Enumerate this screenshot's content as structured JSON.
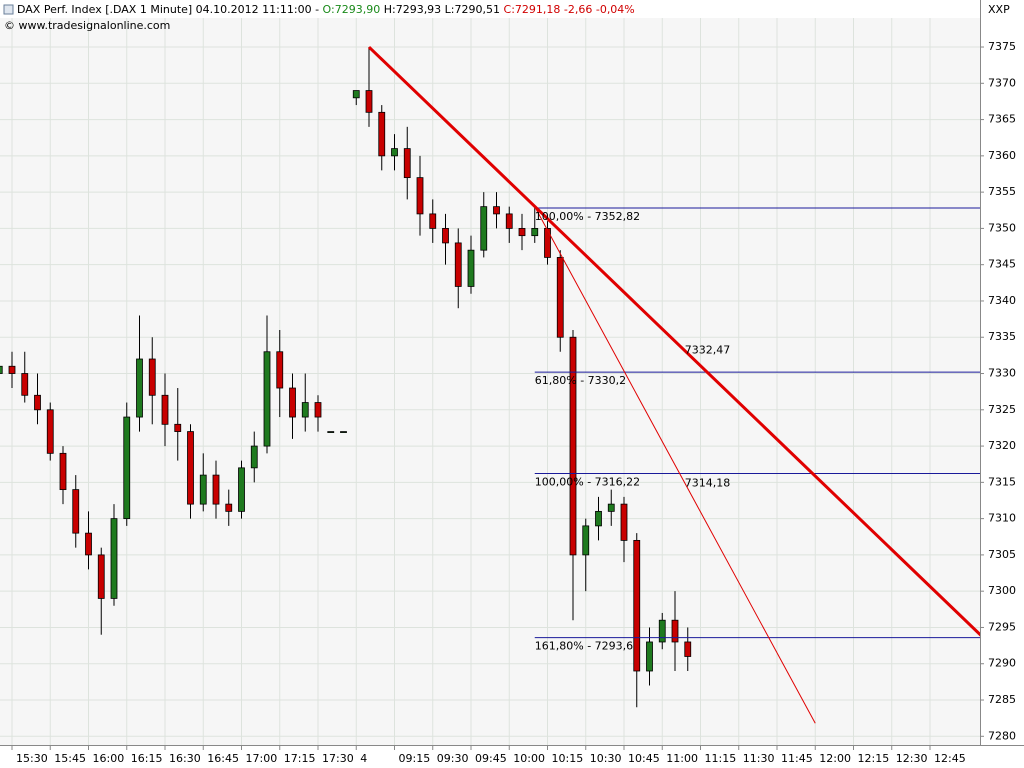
{
  "chart_data": {
    "type": "candlestick",
    "header": {
      "title": "DAX Perf. Index [.DAX  1 Minute] 04.10.2012 11:11:00 -",
      "open": "O:7293,90",
      "high_low": "H:7293,93 L:7290,51",
      "close": "C:7291,18 -2,66 -0,04%"
    },
    "copyright": "© www.tradesignalonline.com",
    "symbol_label": "XXP",
    "categories": [
      "15:25",
      "15:30",
      "15:35",
      "15:40",
      "15:45",
      "15:50",
      "15:55",
      "16:00",
      "16:05",
      "16:10",
      "16:15",
      "16:20",
      "16:25",
      "16:30",
      "16:35",
      "16:40",
      "16:45",
      "16:50",
      "16:55",
      "17:00",
      "17:05",
      "17:10",
      "17:15",
      "17:20",
      "17:25",
      "17:30",
      "17:35",
      "17:40",
      "09:00",
      "09:05",
      "09:10",
      "09:15",
      "09:20",
      "09:25",
      "09:30",
      "09:35",
      "09:40",
      "09:45",
      "09:50",
      "09:55",
      "10:00",
      "10:05",
      "10:10",
      "10:15",
      "10:20",
      "10:25",
      "10:30",
      "10:35",
      "10:40",
      "10:45",
      "10:50",
      "10:55",
      "11:00",
      "11:05",
      "11:10"
    ],
    "open": [
      7330,
      7331,
      7330,
      7327,
      7325,
      7319,
      7314,
      7308,
      7305,
      7299,
      7310,
      7324,
      7332,
      7327,
      7323,
      7322,
      7312,
      7316,
      7312,
      7311,
      7317,
      7320,
      7333,
      7328,
      7324,
      7326,
      7322,
      7322,
      7368,
      7369,
      7366,
      7360,
      7361,
      7357,
      7352,
      7350,
      7348,
      7342,
      7347,
      7353,
      7352,
      7350,
      7349,
      7350,
      7346,
      7335,
      7305,
      7309,
      7311,
      7312,
      7307,
      7289,
      7293,
      7296,
      7293
    ],
    "high": [
      7333,
      7333,
      7333,
      7330,
      7326,
      7320,
      7316,
      7311,
      7306,
      7312,
      7326,
      7338,
      7335,
      7330,
      7328,
      7323,
      7319,
      7318,
      7314,
      7318,
      7322,
      7338,
      7336,
      7330,
      7330,
      7327,
      7322,
      7322,
      7369,
      7375,
      7367,
      7363,
      7364,
      7360,
      7354,
      7352,
      7350,
      7349,
      7355,
      7355,
      7353,
      7352,
      7353,
      7351,
      7347,
      7336,
      7310,
      7313,
      7314,
      7313,
      7308,
      7295,
      7297,
      7300,
      7295
    ],
    "low": [
      7327,
      7328,
      7326,
      7323,
      7318,
      7312,
      7306,
      7303,
      7294,
      7298,
      7309,
      7322,
      7323,
      7320,
      7318,
      7310,
      7311,
      7310,
      7309,
      7310,
      7315,
      7319,
      7324,
      7321,
      7322,
      7322,
      7322,
      7322,
      7367,
      7364,
      7358,
      7358,
      7354,
      7349,
      7348,
      7345,
      7339,
      7341,
      7346,
      7350,
      7348,
      7347,
      7348,
      7345,
      7333,
      7296,
      7300,
      7307,
      7309,
      7304,
      7284,
      7287,
      7292,
      7289,
      7289
    ],
    "close": [
      7331,
      7330,
      7327,
      7325,
      7319,
      7314,
      7308,
      7305,
      7299,
      7310,
      7324,
      7332,
      7327,
      7323,
      7322,
      7312,
      7316,
      7312,
      7311,
      7317,
      7320,
      7333,
      7328,
      7324,
      7326,
      7324,
      7322,
      7322,
      7369,
      7366,
      7360,
      7361,
      7357,
      7352,
      7350,
      7348,
      7342,
      7347,
      7353,
      7352,
      7350,
      7349,
      7350,
      7346,
      7335,
      7305,
      7309,
      7311,
      7312,
      7307,
      7289,
      7293,
      7296,
      7293,
      7291
    ],
    "up_color": "#1f7a1f",
    "down_color": "#c80000",
    "ylim": [
      7278.8,
      7379
    ],
    "yticks": [
      7280,
      7285,
      7290,
      7295,
      7300,
      7305,
      7310,
      7315,
      7320,
      7325,
      7330,
      7335,
      7340,
      7345,
      7350,
      7355,
      7360,
      7365,
      7370,
      7375
    ],
    "xticks": [
      "15:30",
      "15:45",
      "16:00",
      "16:15",
      "16:30",
      "16:45",
      "17:00",
      "17:15",
      "17:30",
      {
        "value": "09:00",
        "label": "4"
      },
      "09:15",
      "09:30",
      "09:45",
      "10:00",
      "10:15",
      "10:30",
      "10:45",
      "11:00",
      "11:15",
      "11:30",
      "11:45",
      "12:00",
      "12:15",
      "12:30",
      "12:45"
    ],
    "grid": true,
    "trend_lines": [
      {
        "color": "#e00000",
        "width": 3,
        "x": [
          "09:05",
          "13:05"
        ],
        "y": [
          7375,
          7293.9
        ]
      },
      {
        "color": "#e00000",
        "width": 1,
        "x": [
          "10:10",
          "12:00"
        ],
        "y": [
          7353,
          7281.8
        ]
      }
    ],
    "fib_levels": [
      {
        "label": "100,00% - 7352,82",
        "value": 7352.82,
        "start": "10:10"
      },
      {
        "label": "61,80% - 7330,2",
        "value": 7330.2,
        "start": "10:10"
      },
      {
        "label": "100,00% - 7316,22",
        "value": 7316.22,
        "start": "10:10"
      },
      {
        "label": "161,80% - 7293,6",
        "value": 7293.6,
        "start": "10:10"
      }
    ],
    "fib_color": "#1a1a9a",
    "annotations": [
      {
        "label": "7332,47",
        "value": 7332.47,
        "x": "11:10"
      },
      {
        "label": "7314,18",
        "value": 7314.18,
        "x": "11:10"
      }
    ]
  }
}
